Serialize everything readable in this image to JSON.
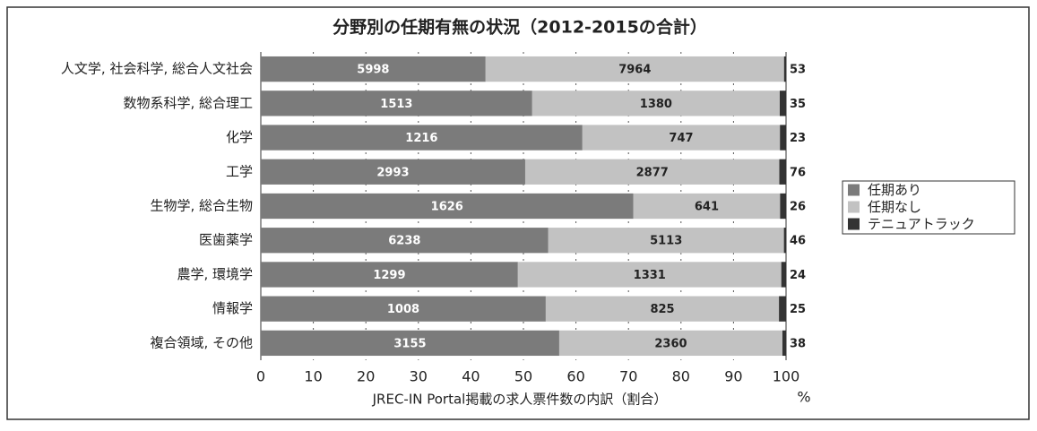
{
  "chart_data": {
    "type": "bar",
    "orientation": "horizontal",
    "stacking": "percent",
    "title": "分野別の任期有無の状況（2012-2015の合計）",
    "xlabel": "JREC-IN Portal掲載の求人票件数の内訳（割合）",
    "xunit": "%",
    "categories": [
      "人文学, 社会科学, 総合人文社会",
      "数物系科学, 総合理工",
      "化学",
      "工学",
      "生物学, 総合生物",
      "医歯薬学",
      "農学, 環境学",
      "情報学",
      "複合領域, その他"
    ],
    "series": [
      {
        "name": "任期あり",
        "color": "#7b7b7b",
        "values": [
          5998,
          1513,
          1216,
          2993,
          1626,
          6238,
          1299,
          1008,
          3155
        ]
      },
      {
        "name": "任期なし",
        "color": "#c2c2c2",
        "values": [
          7964,
          1380,
          747,
          2877,
          641,
          5113,
          1331,
          825,
          2360
        ]
      },
      {
        "name": "テニュアトラック",
        "color": "#333333",
        "values": [
          53,
          35,
          23,
          76,
          26,
          46,
          24,
          25,
          38
        ]
      }
    ],
    "xlim": [
      0,
      100
    ],
    "xticks": [
      0,
      10,
      20,
      30,
      40,
      50,
      60,
      70,
      80,
      90,
      100
    ],
    "grid": true,
    "legend": "right"
  }
}
